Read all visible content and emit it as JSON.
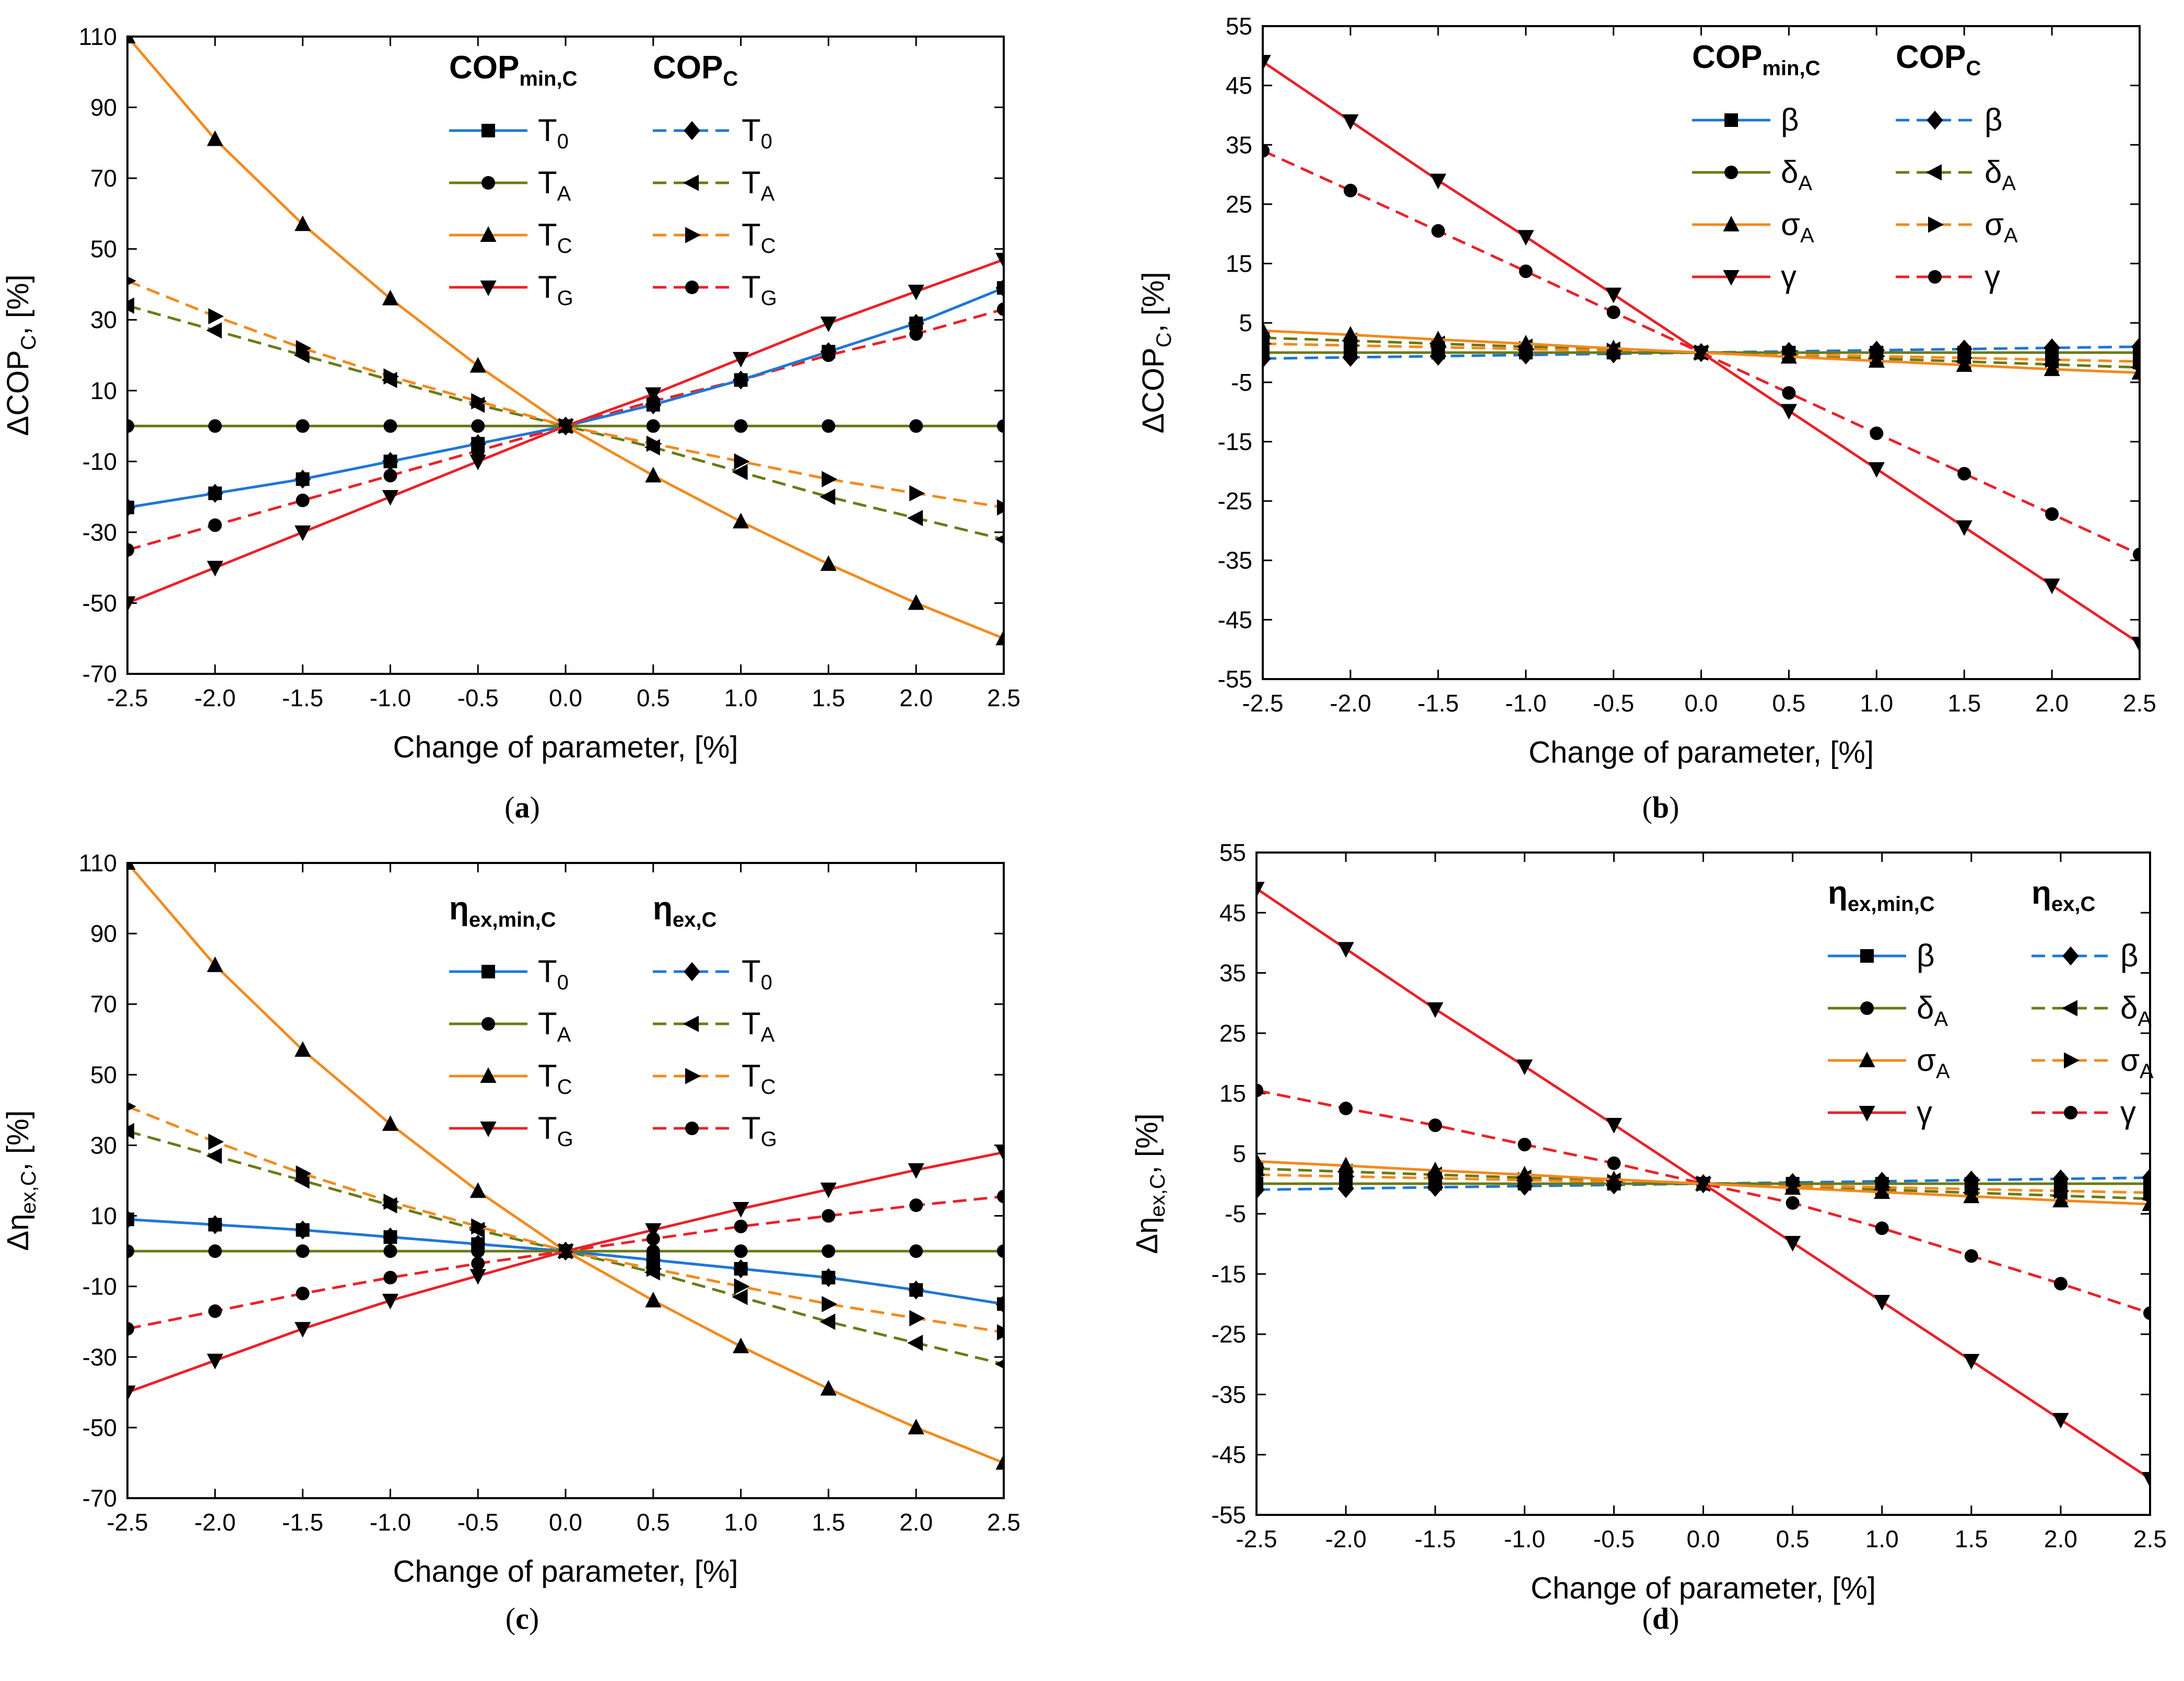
{
  "chart_data": [
    {
      "type": "line",
      "panel_label": "a",
      "xlabel": "Change of parameter, [%]",
      "ylabel": "ΔCOP_C, [%]",
      "ylabel_parts": {
        "main": "ΔCOP",
        "sub": "C",
        "tail": ", [%]"
      },
      "xlim": [
        -2.5,
        2.5
      ],
      "ylim": [
        -70,
        110
      ],
      "xticks": [
        "-2.5",
        "-2.0",
        "-1.5",
        "-1.0",
        "-0.5",
        "0.0",
        "0.5",
        "1.0",
        "1.5",
        "2.0",
        "2.5"
      ],
      "yticks": [
        "-70",
        "-50",
        "-30",
        "-10",
        "10",
        "30",
        "50",
        "70",
        "90",
        "110"
      ],
      "legend": {
        "group_solid": {
          "main": "COP",
          "sub": "min,C"
        },
        "group_dashed": {
          "main": "COP",
          "sub": "C"
        }
      },
      "x": [
        -2.5,
        -2.0,
        -1.5,
        -1.0,
        -0.5,
        0.0,
        0.5,
        1.0,
        1.5,
        2.0,
        2.5
      ],
      "series": [
        {
          "name": "T0",
          "label_main": "T",
          "label_sub": "0",
          "color": "#1f77d4",
          "marker": "square",
          "group": "min",
          "values": [
            -23,
            -19,
            -15,
            -10,
            -5,
            0,
            6,
            13,
            21,
            29,
            39
          ]
        },
        {
          "name": "TA",
          "label_main": "T",
          "label_sub": "A",
          "color": "#6b7a17",
          "marker": "circle",
          "group": "min",
          "values": [
            0,
            0,
            0,
            0,
            0,
            0,
            0,
            0,
            0,
            0,
            0
          ]
        },
        {
          "name": "TC",
          "label_main": "T",
          "label_sub": "C",
          "color": "#f28a1e",
          "marker": "triangle-up",
          "group": "min",
          "values": [
            110,
            81,
            57,
            36,
            17,
            0,
            -14,
            -27,
            -39,
            -50,
            -60
          ]
        },
        {
          "name": "TG",
          "label_main": "T",
          "label_sub": "G",
          "color": "#e8222a",
          "marker": "triangle-down",
          "group": "min",
          "values": [
            -50,
            -40,
            -30,
            -20,
            -10,
            0,
            9,
            19,
            29,
            38,
            47
          ]
        },
        {
          "name": "T0",
          "label_main": "T",
          "label_sub": "0",
          "color": "#1f77d4",
          "marker": "diamond",
          "group": "c",
          "values": [
            -23,
            -19,
            -15,
            -10,
            -5,
            0,
            6,
            13,
            21,
            29,
            39
          ]
        },
        {
          "name": "TA",
          "label_main": "T",
          "label_sub": "A",
          "color": "#6b7a17",
          "marker": "triangle-left",
          "group": "c",
          "values": [
            34,
            27,
            20,
            13,
            6,
            0,
            -6,
            -13,
            -20,
            -26,
            -32
          ]
        },
        {
          "name": "TC",
          "label_main": "T",
          "label_sub": "C",
          "color": "#f28a1e",
          "marker": "triangle-right",
          "group": "c",
          "values": [
            41,
            31,
            22,
            14,
            7,
            0,
            -5,
            -10,
            -15,
            -19,
            -23
          ]
        },
        {
          "name": "TG",
          "label_main": "T",
          "label_sub": "G",
          "color": "#e8222a",
          "marker": "circle",
          "group": "c",
          "values": [
            -35,
            -28,
            -21,
            -14,
            -7,
            0,
            7,
            13,
            20,
            26,
            33
          ]
        }
      ]
    },
    {
      "type": "line",
      "panel_label": "b",
      "xlabel": "Change of parameter, [%]",
      "ylabel": "ΔCOP_C, [%]",
      "ylabel_parts": {
        "main": "ΔCOP",
        "sub": "C",
        "tail": ", [%]"
      },
      "xlim": [
        -2.5,
        2.5
      ],
      "ylim": [
        -55,
        55
      ],
      "xticks": [
        "-2.5",
        "-2.0",
        "-1.5",
        "-1.0",
        "-0.5",
        "0.0",
        "0.5",
        "1.0",
        "1.5",
        "2.0",
        "2.5"
      ],
      "yticks": [
        "-55",
        "-45",
        "-35",
        "-25",
        "-15",
        "-5",
        "5",
        "15",
        "25",
        "35",
        "45",
        "55"
      ],
      "legend": {
        "group_solid": {
          "main": "COP",
          "sub": "min,C"
        },
        "group_dashed": {
          "main": "COP",
          "sub": "C"
        }
      },
      "x": [
        -2.5,
        -2.0,
        -1.5,
        -1.0,
        -0.5,
        0.0,
        0.5,
        1.0,
        1.5,
        2.0,
        2.5
      ],
      "series": [
        {
          "name": "β",
          "label_main": "β",
          "label_sub": "",
          "color": "#1f77d4",
          "marker": "square",
          "group": "min",
          "values": [
            0,
            0,
            0,
            0,
            0,
            0,
            0,
            0,
            0,
            0,
            0
          ]
        },
        {
          "name": "δA",
          "label_main": "δ",
          "label_sub": "A",
          "color": "#6b7a17",
          "marker": "circle",
          "group": "min",
          "values": [
            0,
            0,
            0,
            0,
            0,
            0,
            0,
            0,
            0,
            0,
            0
          ]
        },
        {
          "name": "σA",
          "label_main": "σ",
          "label_sub": "A",
          "color": "#f28a1e",
          "marker": "triangle-up",
          "group": "min",
          "values": [
            3.7,
            3.0,
            2.2,
            1.5,
            0.7,
            0,
            -0.7,
            -1.4,
            -2.1,
            -2.8,
            -3.4
          ]
        },
        {
          "name": "γ",
          "label_main": "γ",
          "label_sub": "",
          "color": "#e8222a",
          "marker": "triangle-down",
          "group": "min",
          "values": [
            49,
            39,
            29,
            19.5,
            9.8,
            0,
            -9.8,
            -19.6,
            -29.4,
            -39.2,
            -49
          ]
        },
        {
          "name": "β",
          "label_main": "β",
          "label_sub": "",
          "color": "#1f77d4",
          "marker": "diamond",
          "group": "c",
          "values": [
            -1.0,
            -0.8,
            -0.6,
            -0.4,
            -0.2,
            0,
            0.2,
            0.4,
            0.6,
            0.8,
            1.0
          ]
        },
        {
          "name": "δA",
          "label_main": "δ",
          "label_sub": "A",
          "color": "#6b7a17",
          "marker": "triangle-left",
          "group": "c",
          "values": [
            2.5,
            2.0,
            1.5,
            1.0,
            0.5,
            0,
            -0.5,
            -1.0,
            -1.5,
            -2.0,
            -2.5
          ]
        },
        {
          "name": "σA",
          "label_main": "σ",
          "label_sub": "A",
          "color": "#f28a1e",
          "marker": "triangle-right",
          "group": "c",
          "values": [
            1.5,
            1.2,
            0.9,
            0.6,
            0.3,
            0,
            -0.3,
            -0.6,
            -0.9,
            -1.2,
            -1.5
          ]
        },
        {
          "name": "γ",
          "label_main": "γ",
          "label_sub": "",
          "color": "#e8222a",
          "marker": "circle",
          "group": "c",
          "values": [
            34,
            27.3,
            20.5,
            13.7,
            6.8,
            0,
            -6.8,
            -13.6,
            -20.4,
            -27.2,
            -34
          ]
        }
      ]
    },
    {
      "type": "line",
      "panel_label": "c",
      "xlabel": "Change of parameter, [%]",
      "ylabel": "Δη_ex,C, [%]",
      "ylabel_parts": {
        "main": "Δη",
        "sub": "ex,C",
        "tail": ", [%]"
      },
      "xlim": [
        -2.5,
        2.5
      ],
      "ylim": [
        -70,
        110
      ],
      "xticks": [
        "-2.5",
        "-2.0",
        "-1.5",
        "-1.0",
        "-0.5",
        "0.0",
        "0.5",
        "1.0",
        "1.5",
        "2.0",
        "2.5"
      ],
      "yticks": [
        "-70",
        "-50",
        "-30",
        "-10",
        "10",
        "30",
        "50",
        "70",
        "90",
        "110"
      ],
      "legend": {
        "group_solid": {
          "main": "η",
          "sub": "ex,min,C"
        },
        "group_dashed": {
          "main": "η",
          "sub": "ex,C"
        }
      },
      "x": [
        -2.5,
        -2.0,
        -1.5,
        -1.0,
        -0.5,
        0.0,
        0.5,
        1.0,
        1.5,
        2.0,
        2.5
      ],
      "series": [
        {
          "name": "T0",
          "label_main": "T",
          "label_sub": "0",
          "color": "#1f77d4",
          "marker": "square",
          "group": "min",
          "values": [
            9,
            7.5,
            6,
            4,
            2,
            0,
            -2.5,
            -5,
            -7.5,
            -11,
            -15
          ]
        },
        {
          "name": "TA",
          "label_main": "T",
          "label_sub": "A",
          "color": "#6b7a17",
          "marker": "circle",
          "group": "min",
          "values": [
            0,
            0,
            0,
            0,
            0,
            0,
            0,
            0,
            0,
            0,
            0
          ]
        },
        {
          "name": "TC",
          "label_main": "T",
          "label_sub": "C",
          "color": "#f28a1e",
          "marker": "triangle-up",
          "group": "min",
          "values": [
            110,
            81,
            57,
            36,
            17,
            0,
            -14,
            -27,
            -39,
            -50,
            -60
          ]
        },
        {
          "name": "TG",
          "label_main": "T",
          "label_sub": "G",
          "color": "#e8222a",
          "marker": "triangle-down",
          "group": "min",
          "values": [
            -40,
            -31,
            -22,
            -14,
            -7,
            0,
            6,
            12,
            17.5,
            23,
            28
          ]
        },
        {
          "name": "T0",
          "label_main": "T",
          "label_sub": "0",
          "color": "#1f77d4",
          "marker": "diamond",
          "group": "c",
          "values": [
            9,
            7.5,
            6,
            4,
            2,
            0,
            -2.5,
            -5,
            -7.5,
            -11,
            -15
          ]
        },
        {
          "name": "TA",
          "label_main": "T",
          "label_sub": "A",
          "color": "#6b7a17",
          "marker": "triangle-left",
          "group": "c",
          "values": [
            34,
            27,
            20,
            13,
            6,
            0,
            -6,
            -13,
            -20,
            -26,
            -32
          ]
        },
        {
          "name": "TC",
          "label_main": "T",
          "label_sub": "C",
          "color": "#f28a1e",
          "marker": "triangle-right",
          "group": "c",
          "values": [
            41,
            31,
            22,
            14,
            7,
            0,
            -5,
            -10,
            -15,
            -19,
            -23
          ]
        },
        {
          "name": "TG",
          "label_main": "T",
          "label_sub": "G",
          "color": "#e8222a",
          "marker": "circle",
          "group": "c",
          "values": [
            -22,
            -17,
            -12,
            -7.5,
            -3.5,
            0,
            3.5,
            7,
            10,
            13,
            15.5
          ]
        }
      ]
    },
    {
      "type": "line",
      "panel_label": "d",
      "xlabel": "Change of parameter, [%]",
      "ylabel": "Δη_ex,C, [%]",
      "ylabel_parts": {
        "main": "Δη",
        "sub": "ex,C",
        "tail": ", [%]"
      },
      "xlim": [
        -2.5,
        2.5
      ],
      "ylim": [
        -55,
        55
      ],
      "xticks": [
        "-2.5",
        "-2.0",
        "-1.5",
        "-1.0",
        "-0.5",
        "0.0",
        "0.5",
        "1.0",
        "1.5",
        "2.0",
        "2.5"
      ],
      "yticks": [
        "-55",
        "-45",
        "-35",
        "-25",
        "-15",
        "-5",
        "5",
        "15",
        "25",
        "35",
        "45",
        "55"
      ],
      "legend": {
        "group_solid": {
          "main": "η",
          "sub": "ex,min,C"
        },
        "group_dashed": {
          "main": "η",
          "sub": "ex,C"
        }
      },
      "x": [
        -2.5,
        -2.0,
        -1.5,
        -1.0,
        -0.5,
        0.0,
        0.5,
        1.0,
        1.5,
        2.0,
        2.5
      ],
      "series": [
        {
          "name": "β",
          "label_main": "β",
          "label_sub": "",
          "color": "#1f77d4",
          "marker": "square",
          "group": "min",
          "values": [
            0,
            0,
            0,
            0,
            0,
            0,
            0,
            0,
            0,
            0,
            0
          ]
        },
        {
          "name": "δA",
          "label_main": "δ",
          "label_sub": "A",
          "color": "#6b7a17",
          "marker": "circle",
          "group": "min",
          "values": [
            0,
            0,
            0,
            0,
            0,
            0,
            0,
            0,
            0,
            0,
            0
          ]
        },
        {
          "name": "σA",
          "label_main": "σ",
          "label_sub": "A",
          "color": "#f28a1e",
          "marker": "triangle-up",
          "group": "min",
          "values": [
            3.7,
            3.0,
            2.2,
            1.5,
            0.7,
            0,
            -0.7,
            -1.4,
            -2.1,
            -2.8,
            -3.4
          ]
        },
        {
          "name": "γ",
          "label_main": "γ",
          "label_sub": "",
          "color": "#e8222a",
          "marker": "triangle-down",
          "group": "min",
          "values": [
            49,
            39,
            29,
            19.5,
            9.8,
            0,
            -9.8,
            -19.6,
            -29.4,
            -39.2,
            -49
          ]
        },
        {
          "name": "β",
          "label_main": "β",
          "label_sub": "",
          "color": "#1f77d4",
          "marker": "diamond",
          "group": "c",
          "values": [
            -1.0,
            -0.8,
            -0.6,
            -0.4,
            -0.2,
            0,
            0.2,
            0.4,
            0.6,
            0.8,
            1.0
          ]
        },
        {
          "name": "δA",
          "label_main": "δ",
          "label_sub": "A",
          "color": "#6b7a17",
          "marker": "triangle-left",
          "group": "c",
          "values": [
            2.5,
            2.0,
            1.5,
            1.0,
            0.5,
            0,
            -0.5,
            -1.0,
            -1.5,
            -2.0,
            -2.5
          ]
        },
        {
          "name": "σA",
          "label_main": "σ",
          "label_sub": "A",
          "color": "#f28a1e",
          "marker": "triangle-right",
          "group": "c",
          "values": [
            1.5,
            1.2,
            0.9,
            0.6,
            0.3,
            0,
            -0.3,
            -0.6,
            -0.9,
            -1.2,
            -1.5
          ]
        },
        {
          "name": "γ",
          "label_main": "γ",
          "label_sub": "",
          "color": "#e8222a",
          "marker": "circle",
          "group": "c",
          "values": [
            15.5,
            12.5,
            9.7,
            6.5,
            3.4,
            0,
            -3.2,
            -7.4,
            -12,
            -16.6,
            -21.5
          ]
        }
      ]
    }
  ]
}
